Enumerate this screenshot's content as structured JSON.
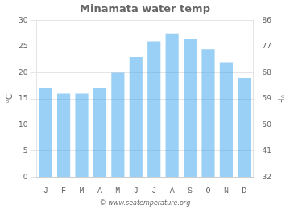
{
  "chart_data": {
    "type": "bar",
    "title": "Minamata water temp",
    "categories": [
      "J",
      "F",
      "M",
      "A",
      "M",
      "J",
      "J",
      "A",
      "S",
      "O",
      "N",
      "D"
    ],
    "values": [
      17,
      16,
      16,
      17,
      20,
      23,
      26,
      27.5,
      26.5,
      24.5,
      22,
      19
    ],
    "ylabel": "°C",
    "y2label": "°F",
    "ylim": [
      0,
      30
    ],
    "yticks": [
      0,
      5,
      10,
      15,
      20,
      25,
      30
    ],
    "y2lim": [
      32,
      86
    ],
    "y2ticks": [
      32,
      41,
      50,
      59,
      68,
      77,
      86
    ],
    "grid": true,
    "annotations": [
      "© www.seatemperature.org"
    ]
  }
}
